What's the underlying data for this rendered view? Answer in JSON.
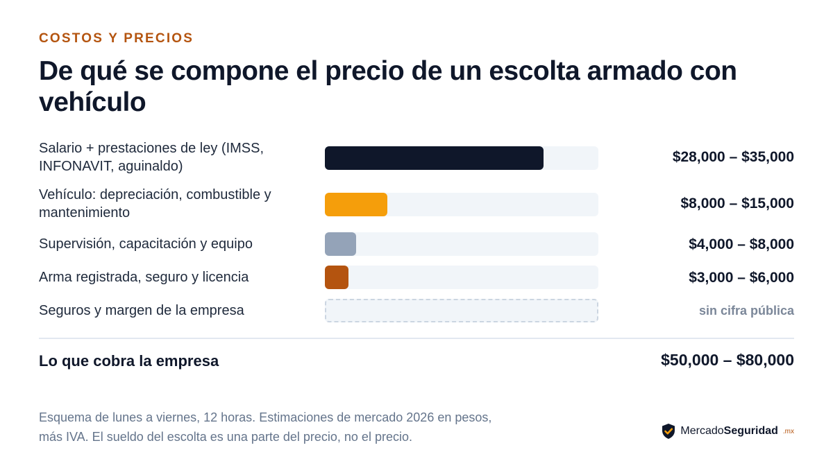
{
  "header": {
    "eyebrow": "COSTOS Y PRECIOS",
    "title": "De qué se compone el precio de un escolta armado con vehículo"
  },
  "chart_data": {
    "type": "bar",
    "orientation": "horizontal",
    "categories": [
      "Salario + prestaciones de ley (IMSS, INFONAVIT, aguinaldo)",
      "Vehículo: depreciación, combustible y mantenimiento",
      "Supervisión, capacitación y equipo",
      "Arma registrada, seguro y licencia",
      "Seguros y margen de la empresa"
    ],
    "ranges": [
      [
        28000,
        35000
      ],
      [
        8000,
        15000
      ],
      [
        4000,
        8000
      ],
      [
        3000,
        6000
      ],
      null
    ],
    "value_labels": [
      "$28,000 – $35,000",
      "$8,000 – $15,000",
      "$4,000 – $8,000",
      "$3,000 – $6,000",
      "sin cifra pública"
    ],
    "colors": [
      "#0f172a",
      "#f59e0b",
      "#94a3b8",
      "#b4540f",
      null
    ],
    "xlim": [
      0,
      35000
    ],
    "grid": false,
    "legend": "none"
  },
  "total": {
    "label": "Lo que cobra la empresa",
    "value": "$50,000 – $80,000"
  },
  "footnote": {
    "line1": "Esquema de lunes a viernes, 12 horas. Estimaciones de mercado 2026 en pesos,",
    "line2": "más IVA. El sueldo del escolta es una parte del precio, no el precio."
  },
  "brand": {
    "name_regular": "Mercado",
    "name_bold": "Seguridad",
    "tld": ".mx",
    "icon": "shield-check-icon"
  }
}
